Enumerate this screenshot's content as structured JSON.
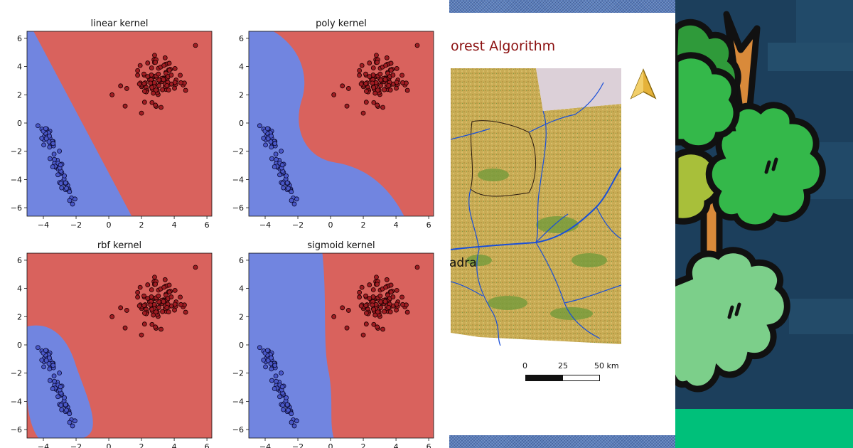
{
  "svm": {
    "chart_data": [
      {
        "type": "scatter",
        "title": "linear kernel",
        "xlim": [
          -5,
          6.3
        ],
        "ylim": [
          -6.6,
          6.5
        ],
        "xticks": [
          "−4",
          "−2",
          "0",
          "2",
          "4",
          "6"
        ],
        "yticks": [
          "6",
          "4",
          "2",
          "0",
          "−2",
          "−4",
          "−6"
        ],
        "boundary": "linear",
        "class_colors": {
          "neg": "#7185e0",
          "pos": "#d9625d"
        }
      },
      {
        "type": "scatter",
        "title": "poly kernel",
        "xlim": [
          -5,
          6.3
        ],
        "ylim": [
          -6.6,
          6.5
        ],
        "xticks": [
          "−4",
          "−2",
          "0",
          "2",
          "4",
          "6"
        ],
        "yticks": [
          "6",
          "4",
          "2",
          "0",
          "−2",
          "−4",
          "−6"
        ],
        "boundary": "poly",
        "class_colors": {
          "neg": "#7185e0",
          "pos": "#d9625d"
        }
      },
      {
        "type": "scatter",
        "title": "rbf kernel",
        "xlim": [
          -5,
          6.3
        ],
        "ylim": [
          -6.6,
          6.5
        ],
        "xticks": [
          "−4",
          "−2",
          "0",
          "2",
          "4",
          "6"
        ],
        "yticks": [
          "6",
          "4",
          "2",
          "0",
          "−2",
          "−4",
          "−6"
        ],
        "boundary": "rbf",
        "class_colors": {
          "neg": "#7185e0",
          "pos": "#d9625d"
        }
      },
      {
        "type": "scatter",
        "title": "sigmoid kernel",
        "xlim": [
          -5,
          6.3
        ],
        "ylim": [
          -6.6,
          6.5
        ],
        "xticks": [
          "−4",
          "−2",
          "0",
          "2",
          "4",
          "6"
        ],
        "yticks": [
          "6",
          "4",
          "2",
          "0",
          "−2",
          "−4",
          "−6"
        ],
        "boundary": "sigmoid",
        "class_colors": {
          "neg": "#7185e0",
          "pos": "#d9625d"
        }
      }
    ],
    "series": {
      "positive_cluster": {
        "center": [
          3,
          3
        ],
        "count": 100,
        "extremes": [
          [
            5.3,
            5.5
          ],
          [
            2.8,
            4.8
          ],
          [
            1.0,
            1.2
          ],
          [
            2.0,
            0.7
          ],
          [
            0.2,
            2.0
          ]
        ]
      },
      "negative_cluster": {
        "line_start": [
          -4.0,
          -0.2
        ],
        "line_end": [
          -2.3,
          -5.7
        ],
        "count": 70
      }
    }
  },
  "map": {
    "title": "orest Algorithm",
    "place_label": "adra",
    "scale": {
      "labels": [
        "0",
        "25",
        "50 km"
      ]
    },
    "colors": {
      "accent_title": "#8b1010",
      "river": "#1a4fd8",
      "terrain": "#c9ac55",
      "vegetation": "#6e9a3a"
    }
  },
  "tree": {
    "colors": {
      "background": "#1c3f5c",
      "ground": "#00c07a",
      "foliage_dark": "#2f9a3a",
      "foliage_mid": "#34b84a",
      "foliage_light": "#7ccf8a",
      "trunk": "#d98a3a"
    }
  }
}
